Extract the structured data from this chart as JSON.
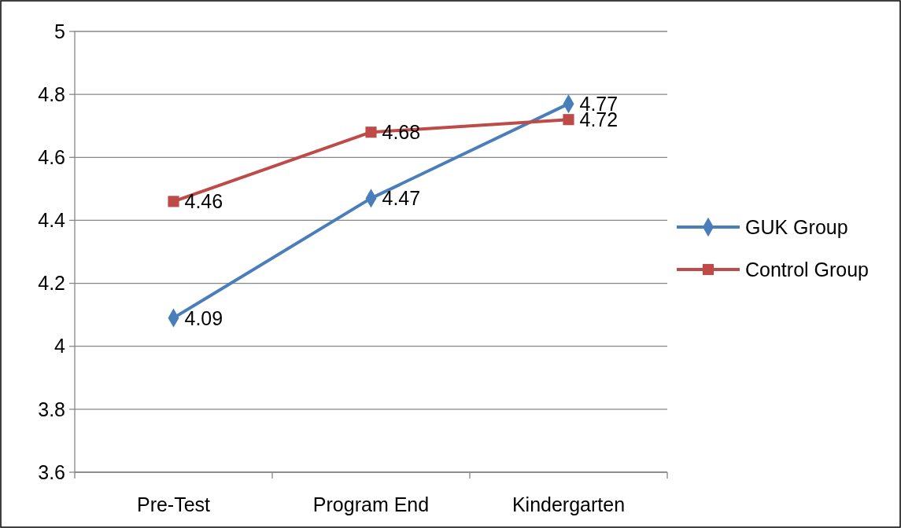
{
  "chart_data": {
    "type": "line",
    "categories": [
      "Pre-Test",
      "Program End",
      "Kindergarten"
    ],
    "series": [
      {
        "name": "GUK Group",
        "color": "#4a7ebb",
        "marker": "diamond",
        "values": [
          4.09,
          4.47,
          4.77
        ]
      },
      {
        "name": "Control Group",
        "color": "#be4b48",
        "marker": "square",
        "values": [
          4.46,
          4.68,
          4.72
        ]
      }
    ],
    "ylim": [
      3.6,
      5
    ],
    "yticks": [
      {
        "value": 3.6,
        "label": "3.6"
      },
      {
        "value": 3.8,
        "label": "3.8"
      },
      {
        "value": 4,
        "label": "4"
      },
      {
        "value": 4.2,
        "label": "4.2"
      },
      {
        "value": 4.4,
        "label": "4.4"
      },
      {
        "value": 4.6,
        "label": "4.6"
      },
      {
        "value": 4.8,
        "label": "4.8"
      },
      {
        "value": 5,
        "label": "5"
      }
    ],
    "grid": "y",
    "legend": "right",
    "data_labels": true,
    "line_style": "solid"
  }
}
